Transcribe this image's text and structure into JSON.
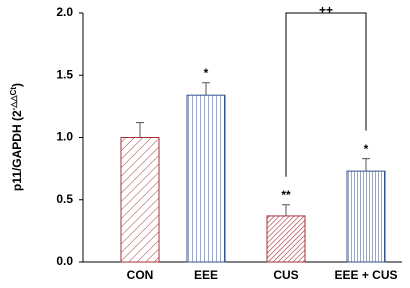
{
  "chart_data": {
    "type": "bar",
    "ylabel": {
      "base": "p11/GAPDH (2",
      "exponent": "-△△Ct",
      "close": ")"
    },
    "categories": [
      "CON",
      "EEE",
      "CUS",
      "EEE + CUS"
    ],
    "values": [
      1.0,
      1.34,
      0.37,
      0.73
    ],
    "errors": [
      0.12,
      0.1,
      0.09,
      0.1
    ],
    "colors": [
      "#a3313a",
      "#33538a",
      "#a3313a",
      "#33538a"
    ],
    "hatch": [
      "diagonal",
      "vertical",
      "diagonal-dense",
      "vertical-dense"
    ],
    "ylim": [
      0,
      2
    ],
    "yticks": [
      {
        "value": 0,
        "label": "0.0"
      },
      {
        "value": 0.5,
        "label": "0.5"
      },
      {
        "value": 1,
        "label": "1.0"
      },
      {
        "value": 1.5,
        "label": "1.5"
      },
      {
        "value": 2,
        "label": "2.0"
      }
    ],
    "annotations": [
      {
        "text": "*",
        "category": "EEE"
      },
      {
        "text": "**",
        "category": "CUS"
      },
      {
        "text": "*",
        "category": "EEE + CUS"
      }
    ],
    "bracket": {
      "text": "++",
      "from": "CUS",
      "to": "EEE + CUS"
    }
  }
}
